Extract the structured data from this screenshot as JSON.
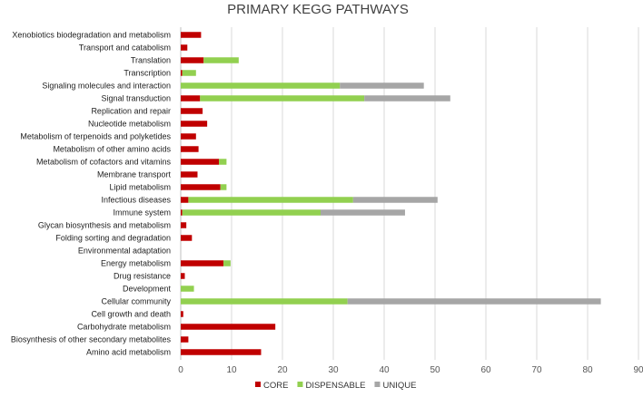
{
  "chart_data": {
    "type": "bar",
    "orientation": "horizontal",
    "stacked": true,
    "title": "PRIMARY KEGG PATHWAYS",
    "xlim": [
      0,
      90
    ],
    "xticks": [
      0,
      10,
      20,
      30,
      40,
      50,
      60,
      70,
      80,
      90
    ],
    "grid": true,
    "legend_position": "bottom",
    "categories": [
      "Xenobiotics biodegradation and metabolism",
      "Transport and catabolism",
      "Translation",
      "Transcription",
      "Signaling molecules and interaction",
      "Signal transduction",
      "Replication and repair",
      "Nucleotide metabolism",
      "Metabolism of terpenoids and polyketides",
      "Metabolism of other amino acids",
      "Metabolism of cofactors and vitamins",
      "Membrane transport",
      "Lipid metabolism",
      "Infectious diseases",
      "Immune system",
      "Glycan biosynthesis and metabolism",
      "Folding sorting and degradation",
      "Environmental adaptation",
      "Energy metabolism",
      "Drug resistance",
      "Development",
      "Cellular community",
      "Cell growth and death",
      "Carbohydrate metabolism",
      "Biosynthesis of other secondary metabolites",
      "Amino acid metabolism"
    ],
    "series": [
      {
        "name": "CORE",
        "color": "#c00000",
        "values": [
          4,
          1.3,
          4.5,
          0.3,
          0,
          3.8,
          4.3,
          5.2,
          3,
          3.5,
          7.5,
          3.3,
          7.8,
          1.5,
          0.3,
          1.1,
          2.2,
          0,
          8.4,
          0.8,
          0,
          0,
          0.5,
          18.6,
          1.5,
          15.8
        ]
      },
      {
        "name": "DISPENSABLE",
        "color": "#92d050",
        "values": [
          0,
          0,
          6.9,
          2.7,
          31.3,
          32.3,
          0,
          0,
          0,
          0,
          1.5,
          0,
          1.2,
          32.4,
          27.2,
          0,
          0,
          0,
          1.4,
          0,
          2.6,
          32.8,
          0,
          0,
          0,
          0
        ]
      },
      {
        "name": "UNIQUE",
        "color": "#a6a6a6",
        "values": [
          0,
          0,
          0,
          0,
          16.5,
          16.9,
          0,
          0,
          0,
          0,
          0,
          0,
          0,
          16.6,
          16.6,
          0,
          0,
          0,
          0,
          0,
          0,
          49.8,
          0,
          0,
          0,
          0
        ]
      }
    ]
  }
}
